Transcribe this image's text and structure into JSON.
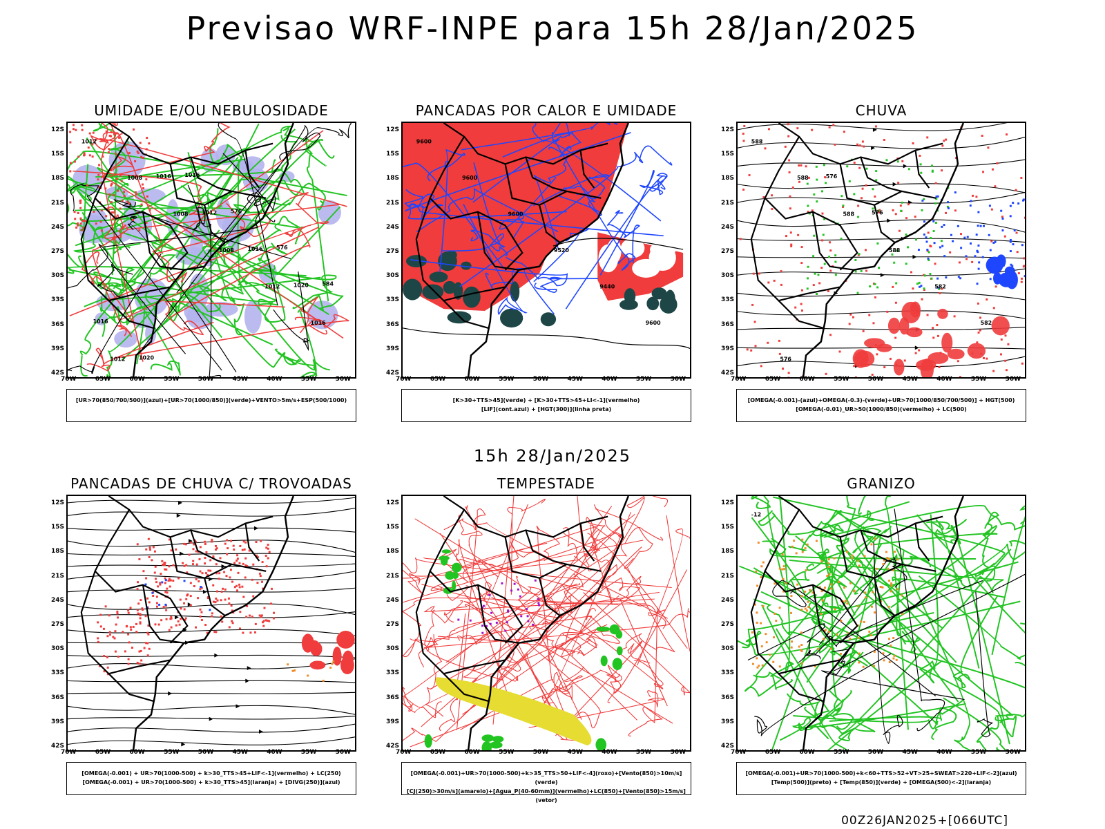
{
  "title": "Previsao WRF-INPE  para 15h 28/Jan/2025",
  "mid_time": "15h 28/Jan/2025",
  "footer": "00Z26JAN2025+[066UTC]",
  "axes": {
    "lat_labels": [
      "12S",
      "15S",
      "18S",
      "21S",
      "24S",
      "27S",
      "30S",
      "33S",
      "36S",
      "39S",
      "42S"
    ],
    "lon_labels": [
      "70W",
      "65W",
      "60W",
      "55W",
      "50W",
      "45W",
      "40W",
      "35W",
      "30W"
    ]
  },
  "panels": [
    {
      "title": "UMIDADE E/OU NEBULOSIDADE",
      "legend": [
        "[UR>70(850/700/500)](azul)+[UR>70(1000/850)](verde)+VENTO>5m/s+ESP(500/1000)"
      ],
      "contour_labels": [
        "1012",
        "1008",
        "1008",
        "1008",
        "1012",
        "1016",
        "1012",
        "1016",
        "1012",
        "1016",
        "1020",
        "1016",
        "1020",
        "1016",
        "576",
        "576",
        "584"
      ]
    },
    {
      "title": "PANCADAS POR CALOR E UMIDADE",
      "legend": [
        "[K>30+TTS>45](verde) + [K>30+TTS>45+LI<-1](vermelho)",
        "[LIF](cont.azul) + [HGT(300)](linha preta)"
      ],
      "contour_labels": [
        "9600",
        "9600",
        "9600",
        "9520",
        "9440",
        "9600"
      ]
    },
    {
      "title": "CHUVA",
      "legend": [
        "[OMEGA(-0.001)-(azul)+OMEGA(-0.3)-(verde)+UR>70(1000/850/700/500)] + HGT(500)",
        "[OMEGA(-0.01)_UR>50(1000/850)(vermelho) + LC(500)"
      ],
      "contour_labels": [
        "588",
        "588",
        "588",
        "588",
        "582",
        "582",
        "576",
        "576",
        "576"
      ]
    },
    {
      "title": "PANCADAS DE CHUVA C/ TROVOADAS",
      "legend": [
        "[OMEGA(-0.001) + UR>70(1000-500) + k>30_TTS>45+LIF<-1](vermelho) + LC(250)",
        "[OMEGA(-0.001) + UR>70(1000-500) + k>30_TTS>45](laranja) + [DIVG(250)](azul)"
      ],
      "contour_labels": []
    },
    {
      "title": "TEMPESTADE",
      "legend": [
        "[OMEGA(-0.001)+UR>70(1000-500)+k>35_TTS>50+LIF<-4](roxo)+[Vento(850)>10m/s](verde)",
        "[CJ(250)>30m/s](amarelo)+[Agua_P(40-60mm)](vermelho)+LC(850)+[Vento(850)>15m/s](vetor)"
      ],
      "contour_labels": []
    },
    {
      "title": "GRANIZO",
      "legend": [
        "[OMEGA(-0.001)+UR>70(1000-500)+k<60+TTS>52+VT>25+SWEAT>220+LIF<-2](azul)",
        "[Temp(500)](preto) + [Temp(850)](verde) + [OMEGA(500)<-2](laranja)"
      ],
      "contour_labels": [
        "-12"
      ]
    }
  ],
  "colors": {
    "red": "#f03c3c",
    "green": "#22c422",
    "blue": "#1e46ff",
    "lavender": "#b4b4ee",
    "darkteal": "#1e4646",
    "yellow": "#e6dc32",
    "orange": "#f08c28",
    "purple": "#a014c8"
  }
}
